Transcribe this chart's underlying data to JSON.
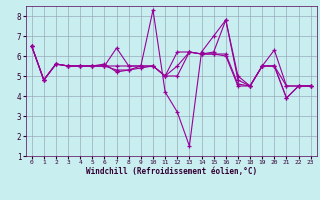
{
  "xlabel": "Windchill (Refroidissement éolien,°C)",
  "bg_color": "#c8eef0",
  "line_color": "#990099",
  "grid_color": "#99aabb",
  "xlim": [
    0,
    23
  ],
  "ylim": [
    1,
    8.5
  ],
  "xticks": [
    0,
    1,
    2,
    3,
    4,
    5,
    6,
    7,
    8,
    9,
    10,
    11,
    12,
    13,
    14,
    15,
    16,
    17,
    18,
    19,
    20,
    21,
    22,
    23
  ],
  "yticks": [
    1,
    2,
    3,
    4,
    5,
    6,
    7,
    8
  ],
  "series": [
    {
      "x": [
        0,
        1,
        2,
        3,
        4,
        5,
        6,
        7,
        8,
        9,
        10,
        11,
        12,
        13,
        14,
        15,
        16,
        17,
        18,
        19,
        20,
        21,
        22,
        23
      ],
      "y": [
        6.5,
        4.8,
        5.6,
        5.5,
        5.5,
        5.5,
        5.6,
        5.2,
        5.3,
        5.5,
        8.3,
        4.2,
        3.2,
        1.5,
        6.2,
        7.0,
        7.8,
        4.8,
        4.5,
        5.5,
        5.5,
        3.9,
        4.5,
        4.5
      ]
    },
    {
      "x": [
        0,
        1,
        2,
        3,
        4,
        5,
        6,
        7,
        8,
        9,
        10,
        11,
        12,
        13,
        14,
        15,
        16,
        17,
        18,
        19,
        20,
        21,
        22,
        23
      ],
      "y": [
        6.5,
        4.8,
        5.6,
        5.5,
        5.5,
        5.5,
        5.5,
        6.4,
        5.5,
        5.5,
        5.5,
        5.0,
        5.0,
        6.2,
        6.1,
        6.2,
        7.8,
        5.0,
        4.5,
        5.5,
        5.5,
        3.9,
        4.5,
        4.5
      ]
    },
    {
      "x": [
        0,
        1,
        2,
        3,
        4,
        5,
        6,
        7,
        8,
        9,
        10,
        11,
        12,
        13,
        14,
        15,
        16,
        17,
        18,
        19,
        20,
        21,
        22,
        23
      ],
      "y": [
        6.5,
        4.8,
        5.6,
        5.5,
        5.5,
        5.5,
        5.5,
        5.5,
        5.5,
        5.5,
        5.5,
        5.0,
        6.2,
        6.2,
        6.1,
        6.1,
        6.0,
        4.5,
        4.5,
        5.5,
        5.5,
        4.5,
        4.5,
        4.5
      ]
    },
    {
      "x": [
        0,
        1,
        2,
        3,
        4,
        5,
        6,
        7,
        8,
        9,
        10,
        11,
        12,
        13,
        14,
        15,
        16,
        17,
        18,
        19,
        20,
        21,
        22,
        23
      ],
      "y": [
        6.5,
        4.8,
        5.6,
        5.5,
        5.5,
        5.5,
        5.5,
        5.3,
        5.3,
        5.4,
        5.5,
        5.0,
        5.5,
        6.2,
        6.1,
        6.1,
        6.1,
        4.6,
        4.5,
        5.5,
        6.3,
        4.5,
        4.5,
        4.5
      ]
    }
  ]
}
